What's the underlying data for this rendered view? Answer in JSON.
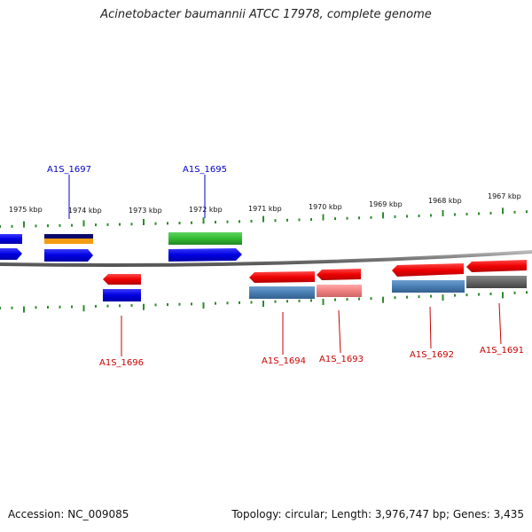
{
  "title": "Acinetobacter baumannii ATCC 17978, complete genome",
  "footer": {
    "accession": "Accession: NC_009085",
    "summary": "Topology: circular; Length: 3,976,747 bp; Genes: 3,435"
  },
  "colors": {
    "forward_label": "#0000cc",
    "reverse_label": "#cc0000",
    "tick": "#2e8b2e",
    "backbone": "#888888"
  },
  "ruler": {
    "labels": [
      "1975 kbp",
      "1974 kbp",
      "1973 kbp",
      "1972 kbp",
      "1971 kbp",
      "1970 kbp",
      "1969 kbp",
      "1968 kbp",
      "1967 kbp"
    ]
  },
  "genes": [
    {
      "name": "A1S_1697",
      "strand": "forward"
    },
    {
      "name": "A1S_1695",
      "strand": "forward"
    },
    {
      "name": "A1S_1696",
      "strand": "reverse"
    },
    {
      "name": "A1S_1694",
      "strand": "reverse"
    },
    {
      "name": "A1S_1693",
      "strand": "reverse"
    },
    {
      "name": "A1S_1692",
      "strand": "reverse"
    },
    {
      "name": "A1S_1691",
      "strand": "reverse"
    }
  ]
}
